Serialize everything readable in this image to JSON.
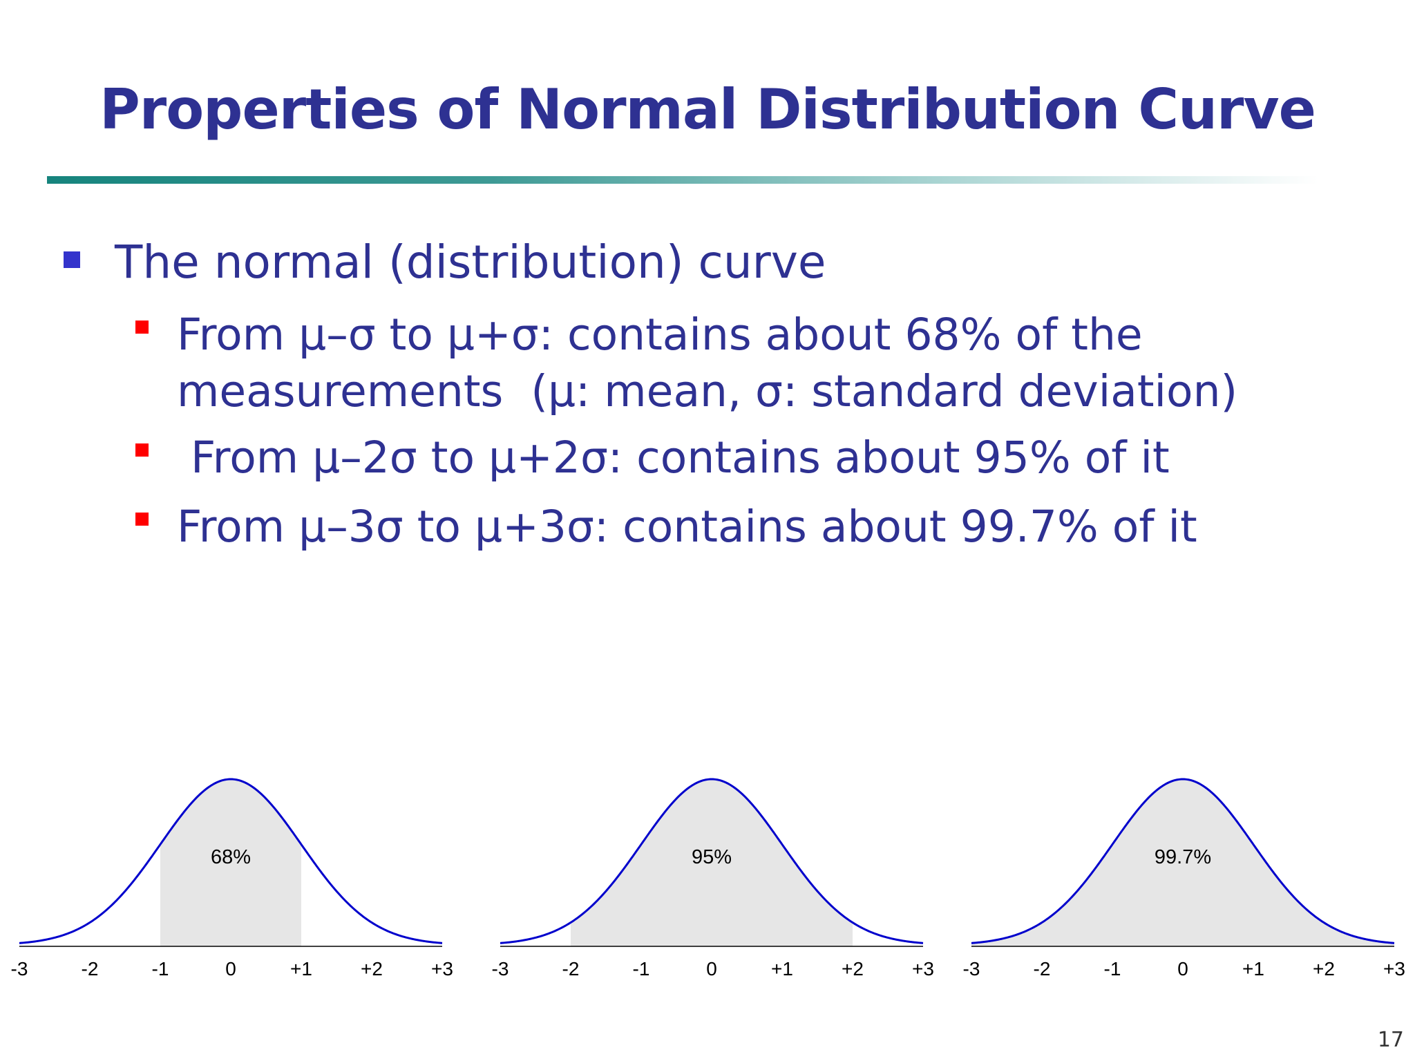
{
  "slide": {
    "title": "Properties of Normal Distribution Curve",
    "page_number": "17"
  },
  "bullets": {
    "main": "The normal (distribution) curve",
    "sub": [
      "From μ–σ to μ+σ: contains about 68% of the\nmeasurements  (μ: mean, σ: standard deviation)",
      " From μ–2σ to μ+2σ: contains about 95% of it",
      "From μ–3σ to μ+3σ: contains about 99.7% of it"
    ]
  },
  "colors": {
    "title": "#2e3192",
    "main_bullet": "#3333cc",
    "sub_bullet": "#ff0000",
    "curve": "#0000cc",
    "shade": "#e6e6e6"
  },
  "chart_data": [
    {
      "type": "area",
      "distribution": "normal",
      "x_ticks": [
        "-3",
        "-2",
        "-1",
        "0",
        "+1",
        "+2",
        "+3"
      ],
      "xlim": [
        -3,
        3
      ],
      "shaded_range": [
        -1,
        1
      ],
      "label": "68%"
    },
    {
      "type": "area",
      "distribution": "normal",
      "x_ticks": [
        "-3",
        "-2",
        "-1",
        "0",
        "+1",
        "+2",
        "+3"
      ],
      "xlim": [
        -3,
        3
      ],
      "shaded_range": [
        -2,
        2
      ],
      "label": "95%"
    },
    {
      "type": "area",
      "distribution": "normal",
      "x_ticks": [
        "-3",
        "-2",
        "-1",
        "0",
        "+1",
        "+2",
        "+3"
      ],
      "xlim": [
        -3,
        3
      ],
      "shaded_range": [
        -3,
        3
      ],
      "label": "99.7%"
    }
  ]
}
